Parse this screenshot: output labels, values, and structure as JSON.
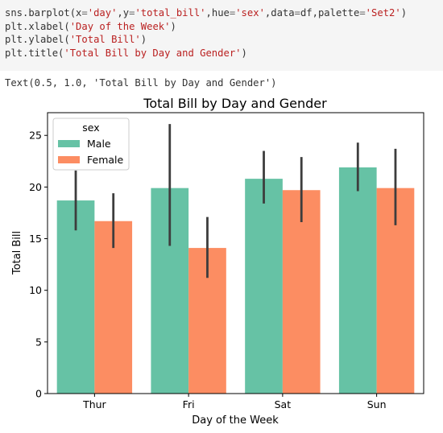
{
  "code": {
    "lines": [
      [
        {
          "t": "sns.barplot(x",
          "s": "p"
        },
        {
          "t": "=",
          "s": "o"
        },
        {
          "t": "'day'",
          "s": "s"
        },
        {
          "t": ",y",
          "s": "p"
        },
        {
          "t": "=",
          "s": "o"
        },
        {
          "t": "'total_bill'",
          "s": "s"
        },
        {
          "t": ",hue",
          "s": "p"
        },
        {
          "t": "=",
          "s": "o"
        },
        {
          "t": "'sex'",
          "s": "s"
        },
        {
          "t": ",data",
          "s": "p"
        },
        {
          "t": "=",
          "s": "o"
        },
        {
          "t": "df,palette",
          "s": "p"
        },
        {
          "t": "=",
          "s": "o"
        },
        {
          "t": "'Set2'",
          "s": "s"
        },
        {
          "t": ")",
          "s": "p"
        }
      ],
      [
        {
          "t": "plt.xlabel(",
          "s": "p"
        },
        {
          "t": "'Day of the Week'",
          "s": "s"
        },
        {
          "t": ")",
          "s": "p"
        }
      ],
      [
        {
          "t": "plt.ylabel(",
          "s": "p"
        },
        {
          "t": "'Total Bill'",
          "s": "s"
        },
        {
          "t": ")",
          "s": "p"
        }
      ],
      [
        {
          "t": "plt.title(",
          "s": "p"
        },
        {
          "t": "'Total Bill by Day and Gender'",
          "s": "s"
        },
        {
          "t": ")",
          "s": "p"
        }
      ]
    ]
  },
  "output_text": "Text(0.5, 1.0, 'Total Bill by Day and Gender')",
  "chart_data": {
    "type": "bar",
    "title": "Total Bill by Day and Gender",
    "xlabel": "Day of the Week",
    "ylabel": "Total Bill",
    "categories": [
      "Thur",
      "Fri",
      "Sat",
      "Sun"
    ],
    "ylim": [
      0,
      27.2
    ],
    "yticks": [
      0,
      5,
      10,
      15,
      20,
      25
    ],
    "legend": {
      "title": "sex",
      "position": "top-left"
    },
    "series": [
      {
        "name": "Male",
        "color": "#66c2a5",
        "values": [
          18.7,
          19.9,
          20.8,
          21.9
        ],
        "ci": [
          [
            15.8,
            21.6
          ],
          [
            14.3,
            26.1
          ],
          [
            18.4,
            23.5
          ],
          [
            19.6,
            24.3
          ]
        ]
      },
      {
        "name": "Female",
        "color": "#fc8d62",
        "values": [
          16.7,
          14.1,
          19.7,
          19.9
        ],
        "ci": [
          [
            14.1,
            19.4
          ],
          [
            11.2,
            17.1
          ],
          [
            16.6,
            22.9
          ],
          [
            16.3,
            23.7
          ]
        ]
      }
    ]
  }
}
